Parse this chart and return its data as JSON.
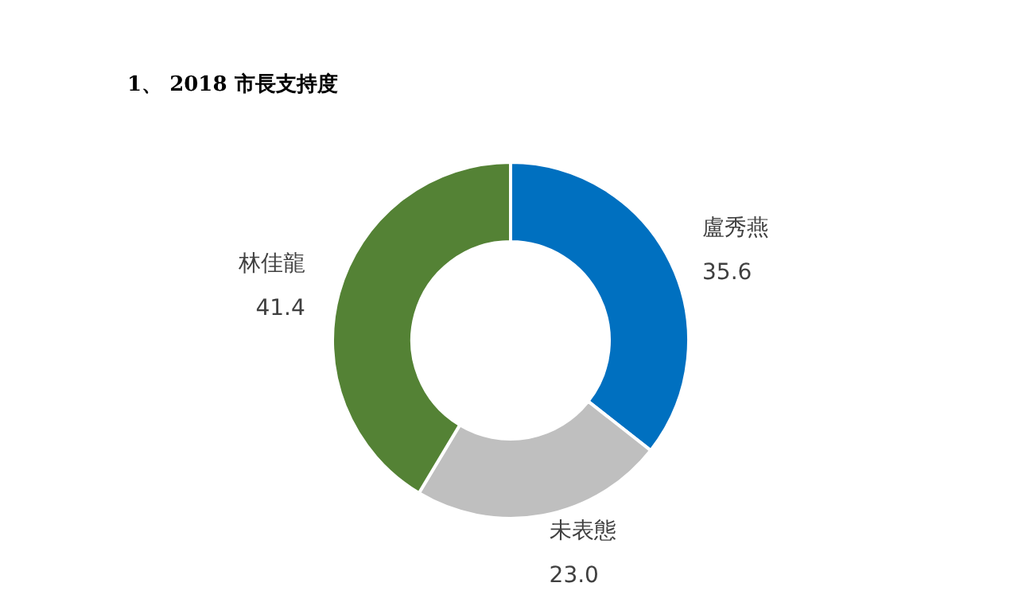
{
  "chart_data": {
    "type": "donut",
    "title": "1、 2018 市長支持度",
    "categories": [
      "盧秀燕",
      "未表態",
      "林佳龍"
    ],
    "values": [
      35.6,
      23.0,
      41.4
    ],
    "value_labels": [
      "35.6",
      "23.0",
      "41.4"
    ],
    "colors": [
      "#0070c0",
      "#bfbfbf",
      "#548235"
    ]
  }
}
